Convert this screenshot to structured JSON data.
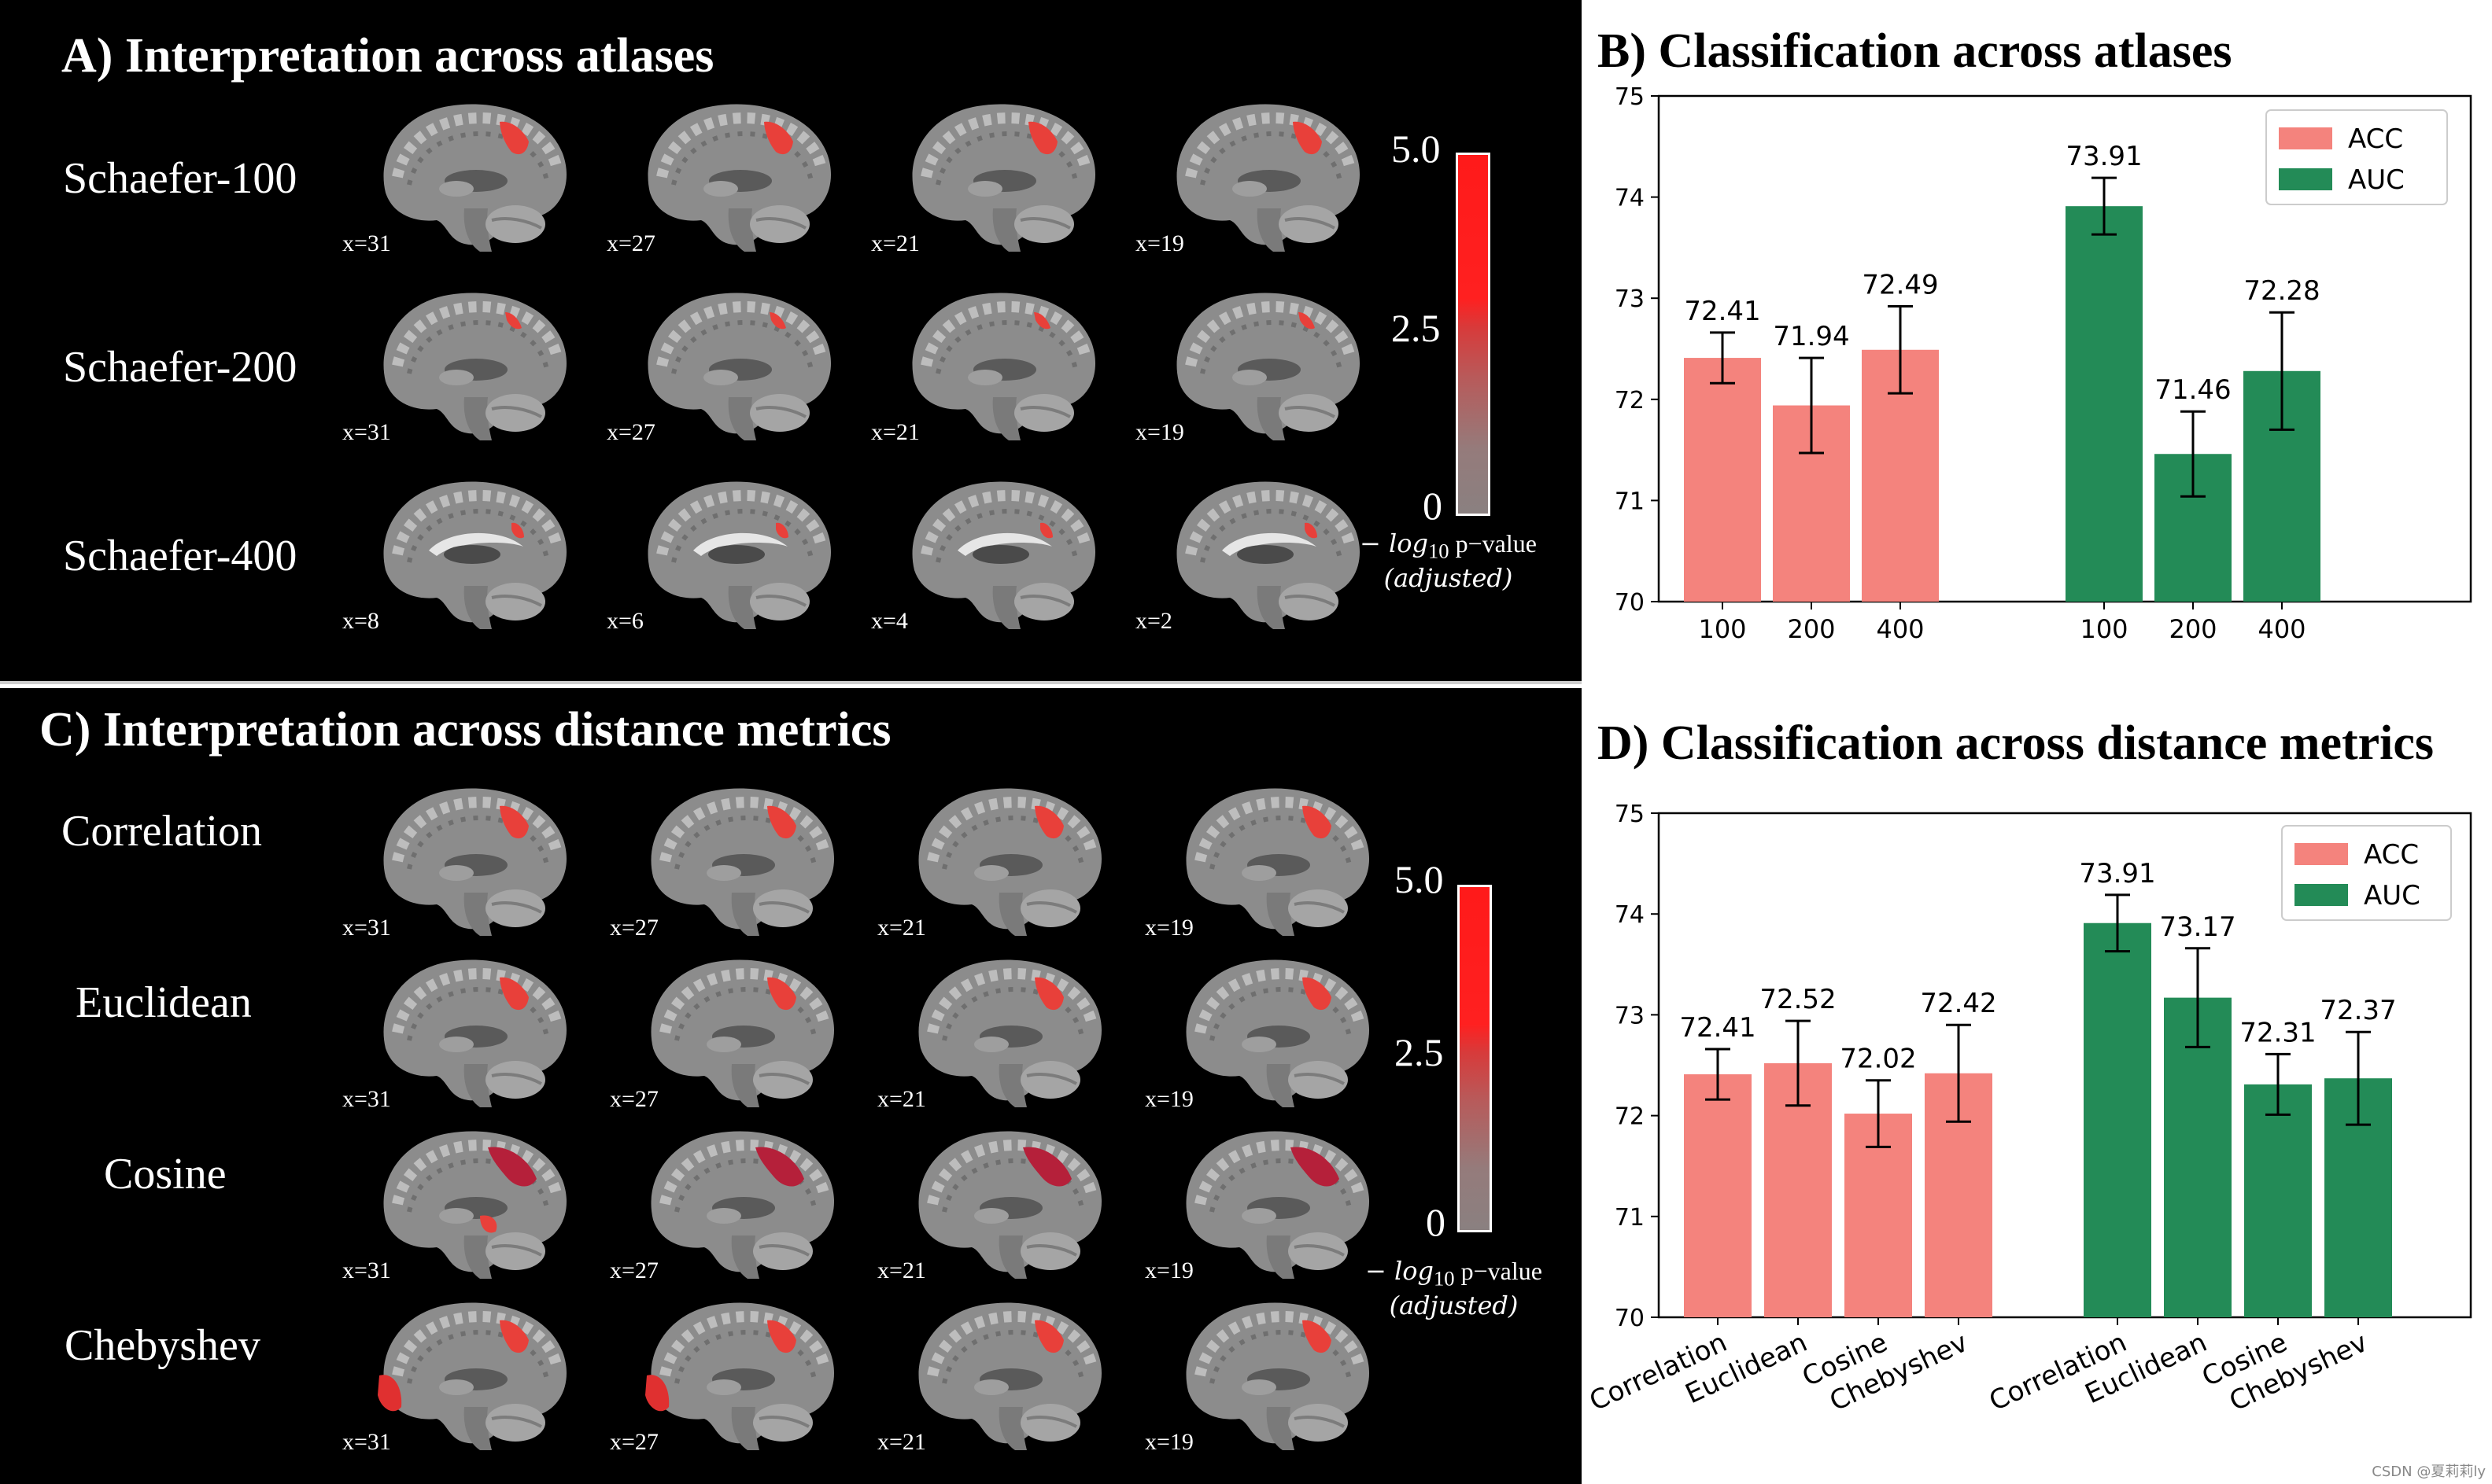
{
  "panelA": {
    "title": "A) Interpretation across atlases",
    "rows": [
      {
        "label": "Schaefer-100",
        "coords": [
          "x=31",
          "x=27",
          "x=21",
          "x=19"
        ]
      },
      {
        "label": "Schaefer-200",
        "coords": [
          "x=31",
          "x=27",
          "x=21",
          "x=19"
        ]
      },
      {
        "label": "Schaefer-400",
        "coords": [
          "x=8",
          "x=6",
          "x=4",
          "x=2"
        ]
      }
    ],
    "colorbar": {
      "ticks": [
        "5.0",
        "2.5",
        "0"
      ],
      "caption_math": "− log",
      "caption_sub": "10",
      "caption_rest": " p−value",
      "caption_line2": "(adjusted)"
    }
  },
  "panelC": {
    "title": "C) Interpretation across distance metrics",
    "rows": [
      {
        "label": "Correlation",
        "coords": [
          "x=31",
          "x=27",
          "x=21",
          "x=19"
        ]
      },
      {
        "label": "Euclidean",
        "coords": [
          "x=31",
          "x=27",
          "x=21",
          "x=19"
        ]
      },
      {
        "label": "Cosine",
        "coords": [
          "x=31",
          "x=27",
          "x=21",
          "x=19"
        ]
      },
      {
        "label": "Chebyshev",
        "coords": [
          "x=31",
          "x=27",
          "x=21",
          "x=19"
        ]
      }
    ],
    "colorbar": {
      "ticks": [
        "5.0",
        "2.5",
        "0"
      ],
      "caption_math": "− log",
      "caption_sub": "10",
      "caption_rest": " p−value",
      "caption_line2": "(adjusted)"
    }
  },
  "panelB": {
    "title": "B) Classification across atlases"
  },
  "panelD": {
    "title": "D) Classification across distance metrics"
  },
  "colors": {
    "acc": "#f4837d",
    "auc": "#238b57",
    "dark_bg": "#000000"
  },
  "chart_data": [
    {
      "type": "bar",
      "title": "B) Classification across atlases",
      "groups": [
        {
          "series": "ACC",
          "categories": [
            "100",
            "200",
            "400"
          ],
          "values": [
            72.41,
            71.94,
            72.49
          ],
          "err": [
            0.25,
            0.47,
            0.43
          ]
        },
        {
          "series": "AUC",
          "categories": [
            "100",
            "200",
            "400"
          ],
          "values": [
            73.91,
            71.46,
            72.28
          ],
          "err": [
            0.28,
            0.42,
            0.58
          ]
        }
      ],
      "legend": [
        "ACC",
        "AUC"
      ],
      "legend_loc": "top-right",
      "ylim": [
        70,
        75
      ],
      "yticks": [
        "70",
        "71",
        "72",
        "73",
        "74",
        "75"
      ],
      "xlabel": "",
      "ylabel": ""
    },
    {
      "type": "bar",
      "title": "D) Classification across distance metrics",
      "groups": [
        {
          "series": "ACC",
          "categories": [
            "Correlation",
            "Euclidean",
            "Cosine",
            "Chebyshev"
          ],
          "values": [
            72.41,
            72.52,
            72.02,
            72.42
          ],
          "err": [
            0.25,
            0.42,
            0.33,
            0.48
          ]
        },
        {
          "series": "AUC",
          "categories": [
            "Correlation",
            "Euclidean",
            "Cosine",
            "Chebyshev"
          ],
          "values": [
            73.91,
            73.17,
            72.31,
            72.37
          ],
          "err": [
            0.28,
            0.49,
            0.3,
            0.46
          ]
        }
      ],
      "legend": [
        "ACC",
        "AUC"
      ],
      "legend_loc": "top-right",
      "ylim": [
        70,
        75
      ],
      "yticks": [
        "70",
        "71",
        "72",
        "73",
        "74",
        "75"
      ],
      "xlabel": "",
      "ylabel": ""
    }
  ],
  "watermark": "CSDN @夏莉莉ly"
}
